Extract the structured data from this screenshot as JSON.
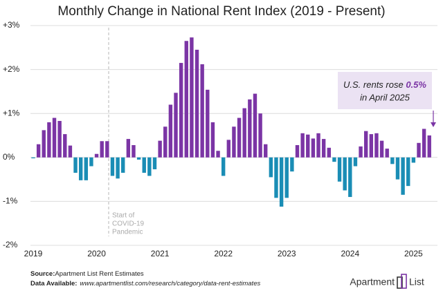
{
  "chart_data": {
    "type": "bar",
    "title": "Monthly Change in National Rent Index (2019 - Present)",
    "categories": [
      "2019",
      null,
      null,
      null,
      null,
      null,
      null,
      null,
      null,
      null,
      null,
      null,
      "2020",
      null,
      null,
      null,
      null,
      null,
      null,
      null,
      null,
      null,
      null,
      null,
      "2021",
      null,
      null,
      null,
      null,
      null,
      null,
      null,
      null,
      null,
      null,
      null,
      "2022",
      null,
      null,
      null,
      null,
      null,
      null,
      null,
      null,
      null,
      null,
      null,
      "2023",
      null,
      null,
      null,
      null,
      null,
      null,
      null,
      null,
      null,
      null,
      null,
      "2024",
      null,
      null,
      null,
      null,
      null,
      null,
      null,
      null,
      null,
      null,
      null,
      "2025",
      null,
      null,
      null
    ],
    "values": [
      -0.02,
      0.3,
      0.62,
      0.8,
      0.9,
      0.83,
      0.53,
      0.27,
      -0.35,
      -0.52,
      -0.52,
      -0.2,
      0.08,
      0.37,
      0.37,
      -0.42,
      -0.48,
      -0.35,
      0.42,
      0.28,
      -0.05,
      -0.35,
      -0.42,
      -0.27,
      0.38,
      0.7,
      1.2,
      1.47,
      2.15,
      2.65,
      2.73,
      2.45,
      2.12,
      1.54,
      0.8,
      0.15,
      -0.42,
      0.4,
      0.7,
      0.9,
      1.12,
      1.32,
      1.45,
      1.0,
      0.3,
      -0.45,
      -0.92,
      -1.12,
      -0.92,
      -0.32,
      0.28,
      0.55,
      0.52,
      0.43,
      0.55,
      0.42,
      0.22,
      -0.1,
      -0.55,
      -0.75,
      -0.9,
      -0.2,
      0.25,
      0.6,
      0.53,
      0.55,
      0.38,
      0.2,
      -0.15,
      -0.5,
      -0.85,
      -0.65,
      -0.12,
      0.33,
      0.65,
      0.5
    ],
    "positive_color": "#7b35a5",
    "negative_color": "#1a8db5",
    "ylim": [
      -2,
      3
    ],
    "yticks": [
      {
        "value": 3,
        "label": "+3%"
      },
      {
        "value": 2,
        "label": "+2%"
      },
      {
        "value": 1,
        "label": "+1%"
      },
      {
        "value": 0,
        "label": "0%"
      },
      {
        "value": -1,
        "label": "-1%"
      },
      {
        "value": -2,
        "label": "-2%"
      }
    ],
    "grid": true,
    "covid_annotation": [
      "Start of",
      "COVID-19",
      "Pandemic"
    ],
    "callout": {
      "before": "U.S. rents rose ",
      "highlight": "0.5%",
      "line2": "in April 2025"
    }
  },
  "footer": {
    "source_label": "Source:",
    "source_text": "Apartment List Rent Estimates",
    "data_label": "Data Available:",
    "data_url": "www.apartmentlist.com/research/category/data-rent-estimates"
  },
  "logo": [
    "Apartment",
    "List"
  ]
}
